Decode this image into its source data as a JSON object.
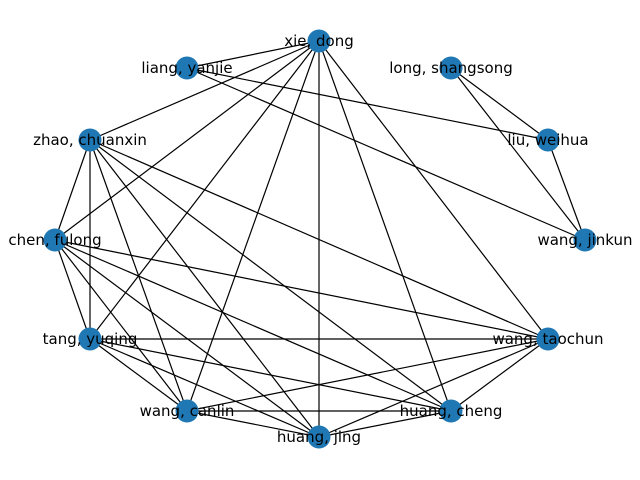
{
  "graph": {
    "node_color": "#1f77b4",
    "edge_color": "#000000",
    "nodes": [
      {
        "id": "xie",
        "label": "xie, dong"
      },
      {
        "id": "long",
        "label": "long, shangsong"
      },
      {
        "id": "liu",
        "label": "liu, weihua"
      },
      {
        "id": "wangjk",
        "label": "wang, jinkun"
      },
      {
        "id": "wangtc",
        "label": "wang, taochun"
      },
      {
        "id": "huangc",
        "label": "huang, cheng"
      },
      {
        "id": "huangj",
        "label": "huang, jing"
      },
      {
        "id": "wangcl",
        "label": "wang, canlin"
      },
      {
        "id": "tang",
        "label": "tang, yuqing"
      },
      {
        "id": "chen",
        "label": "chen, fulong"
      },
      {
        "id": "zhao",
        "label": "zhao, chuanxin"
      },
      {
        "id": "liang",
        "label": "liang, yanjie"
      }
    ],
    "edges": [
      [
        "xie",
        "zhao"
      ],
      [
        "xie",
        "liang"
      ],
      [
        "xie",
        "chen"
      ],
      [
        "xie",
        "tang"
      ],
      [
        "xie",
        "wangcl"
      ],
      [
        "xie",
        "huangj"
      ],
      [
        "xie",
        "huangc"
      ],
      [
        "xie",
        "wangtc"
      ],
      [
        "liang",
        "liu"
      ],
      [
        "liang",
        "wangjk"
      ],
      [
        "long",
        "liu"
      ],
      [
        "long",
        "wangjk"
      ],
      [
        "liu",
        "wangjk"
      ],
      [
        "zhao",
        "chen"
      ],
      [
        "zhao",
        "tang"
      ],
      [
        "zhao",
        "wangcl"
      ],
      [
        "zhao",
        "huangj"
      ],
      [
        "zhao",
        "huangc"
      ],
      [
        "zhao",
        "wangtc"
      ],
      [
        "chen",
        "tang"
      ],
      [
        "chen",
        "wangcl"
      ],
      [
        "chen",
        "huangj"
      ],
      [
        "chen",
        "huangc"
      ],
      [
        "chen",
        "wangtc"
      ],
      [
        "tang",
        "wangtc"
      ],
      [
        "tang",
        "wangcl"
      ],
      [
        "tang",
        "huangj"
      ],
      [
        "tang",
        "huangc"
      ],
      [
        "wangtc",
        "wangcl"
      ],
      [
        "wangtc",
        "huangc"
      ],
      [
        "wangtc",
        "huangj"
      ],
      [
        "wangcl",
        "huangj"
      ],
      [
        "wangcl",
        "huangc"
      ],
      [
        "huangj",
        "huangc"
      ]
    ]
  }
}
